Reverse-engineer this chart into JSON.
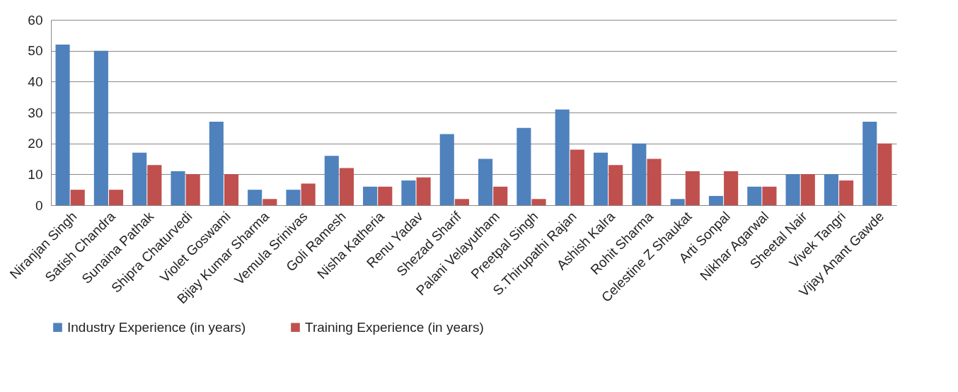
{
  "chart_data": {
    "type": "bar",
    "categories": [
      "Niranjan Singh",
      "Satish Chandra",
      "Sunaina Pathak",
      "Shipra Chaturvedi",
      "Violet Goswami",
      "Bijay Kumar Sharma",
      "Vemula Srinivas",
      "Goli Ramesh",
      "Nisha Katheria",
      "Renu Yadav",
      "Shezad Sharif",
      "Palani Velayutham",
      "Preetpal Singh",
      "S.Thirupathi Rajan",
      "Ashish Kalra",
      "Rohit Sharma",
      "Celestine Z Shaukat",
      "Arti Sonpal",
      "Nikhar Agarwal",
      "Sheetal Nair",
      "Vivek Tangri",
      "Vijay Anant Gawde"
    ],
    "series": [
      {
        "name": "Industry Experience (in years)",
        "color": "#4f81bd",
        "values": [
          52,
          50,
          17,
          11,
          27,
          5,
          5,
          16,
          6,
          8,
          23,
          15,
          25,
          31,
          17,
          20,
          2,
          3,
          6,
          10,
          10,
          27
        ]
      },
      {
        "name": "Training Experience (in years)",
        "color": "#c0504d",
        "values": [
          5,
          5,
          13,
          10,
          10,
          2,
          7,
          12,
          6,
          9,
          2,
          6,
          2,
          18,
          13,
          15,
          11,
          11,
          6,
          10,
          8,
          20
        ]
      }
    ],
    "ylim": [
      0,
      60
    ],
    "yticks": [
      0,
      10,
      20,
      30,
      40,
      50,
      60
    ],
    "grid": "y",
    "legend": "bottom"
  }
}
